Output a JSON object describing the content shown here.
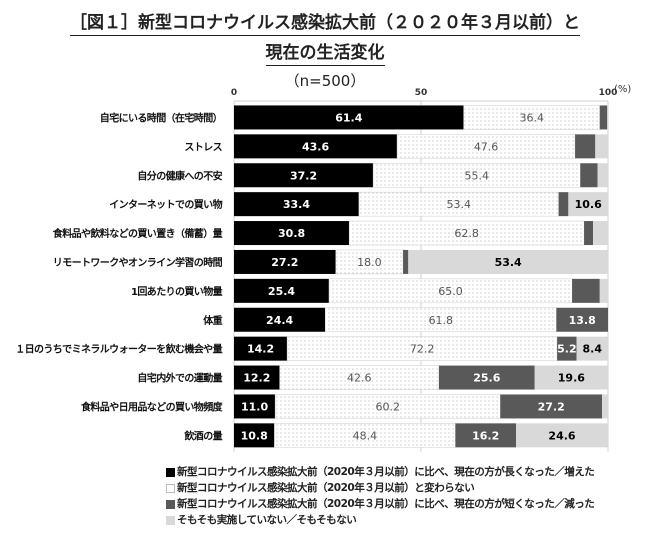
{
  "colors": {
    "increased": "#000000",
    "same": "#ffffff",
    "decreased": "#595959",
    "none": "#d9d9d9"
  },
  "chart_data": {
    "type": "bar",
    "orientation": "horizontal-stacked-100",
    "title": "［図１］新型コロナウイルス感染拡大前（２０２０年３月以前）と",
    "title_line2": "現在の生活変化",
    "subtitle": "（n=500）",
    "xlim": [
      0,
      100
    ],
    "xticks": [
      "0",
      "50",
      "100"
    ],
    "xunit": "(%)",
    "grid": true,
    "legend_position": "bottom",
    "categories": [
      "自宅にいる時間（在宅時間）",
      "ストレス",
      "自分の健康への不安",
      "インターネットでの買い物",
      "食料品や飲料などの買い置き（備蓄）量",
      "リモートワークやオンライン学習の時間",
      "1回あたりの買い物量",
      "体重",
      "１日のうちでミネラルウォーターを飲む機会や量",
      "自宅内外での運動量",
      "食料品や日用品などの買い物頻度",
      "飲酒の量"
    ],
    "series": [
      {
        "name": "■新型コロナウイルス感染拡大前（2020年３月以前）に比べ、現在の方が長くなった／増えた",
        "key": "increased",
        "values": [
          61.4,
          43.6,
          37.2,
          33.4,
          30.8,
          27.2,
          25.4,
          24.4,
          14.2,
          12.2,
          11.0,
          10.8
        ],
        "labeled": [
          true,
          true,
          true,
          true,
          true,
          true,
          true,
          true,
          true,
          true,
          true,
          true
        ]
      },
      {
        "name": "□新型コロナウイルス感染拡大前（2020年３月以前）と変わらない",
        "key": "same",
        "values": [
          36.4,
          47.6,
          55.4,
          53.4,
          62.8,
          18.0,
          65.0,
          61.8,
          72.2,
          42.6,
          60.2,
          48.4
        ],
        "labeled": [
          true,
          true,
          true,
          true,
          true,
          true,
          true,
          true,
          true,
          true,
          true,
          true
        ]
      },
      {
        "name": "■新型コロナウイルス感染拡大前（2020年３月以前）に比べ、現在の方が短くなった／減った",
        "key": "decreased",
        "values": [
          2.0,
          5.4,
          4.6,
          2.6,
          2.4,
          1.4,
          7.4,
          13.8,
          5.2,
          25.6,
          27.2,
          16.2
        ],
        "labeled": [
          false,
          false,
          false,
          false,
          false,
          false,
          false,
          true,
          true,
          true,
          true,
          true
        ]
      },
      {
        "name": "□そもそも実施していない／そもそもない",
        "key": "none",
        "values": [
          0.2,
          3.4,
          2.8,
          10.6,
          4.0,
          53.4,
          2.2,
          0.0,
          8.4,
          19.6,
          1.6,
          24.6
        ],
        "labeled": [
          false,
          false,
          false,
          true,
          false,
          true,
          false,
          false,
          true,
          true,
          false,
          true
        ]
      }
    ]
  }
}
